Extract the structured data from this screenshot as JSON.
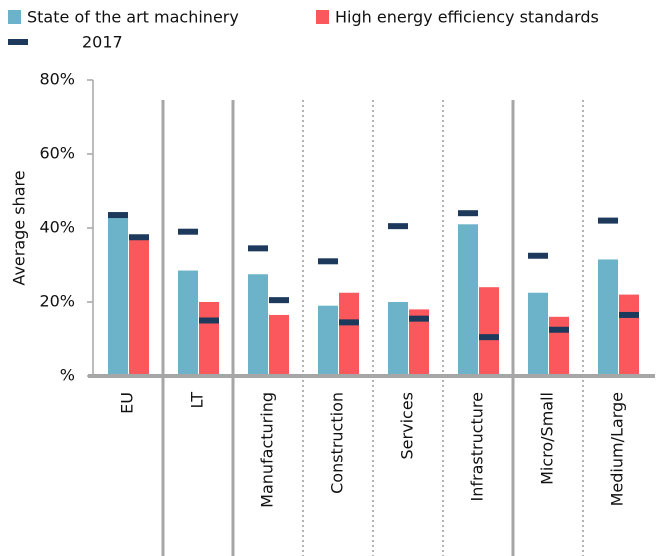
{
  "chart_data": {
    "type": "bar",
    "ylabel": "Average share",
    "categories": [
      "EU",
      "LT",
      "Manufacturing",
      "Construction",
      "Services",
      "Infrastructure",
      "Micro/Small",
      "Medium/Large"
    ],
    "series": [
      {
        "name": "State of the art machinery",
        "color": "#6cb2c8",
        "values": [
          43,
          28.5,
          27.5,
          19,
          20,
          41,
          22.5,
          31.5
        ],
        "markers_2017": [
          43.5,
          39,
          34.5,
          31,
          40.5,
          44,
          32.5,
          42
        ]
      },
      {
        "name": "High energy efficiency standards",
        "color": "#fb585d",
        "values": [
          37,
          20,
          16.5,
          22.5,
          18,
          24,
          16,
          22
        ],
        "markers_2017": [
          37.5,
          15,
          20.5,
          14.5,
          15.5,
          10.5,
          12.5,
          16.5
        ]
      }
    ],
    "marker_legend": "2017",
    "marker_color": "#1d3a5c",
    "ylim": [
      0,
      80
    ],
    "yticks": [
      {
        "value": 0,
        "label": "%"
      },
      {
        "value": 20,
        "label": "20%"
      },
      {
        "value": 40,
        "label": "40%"
      },
      {
        "value": 60,
        "label": "60%"
      },
      {
        "value": 80,
        "label": "80%"
      }
    ]
  }
}
